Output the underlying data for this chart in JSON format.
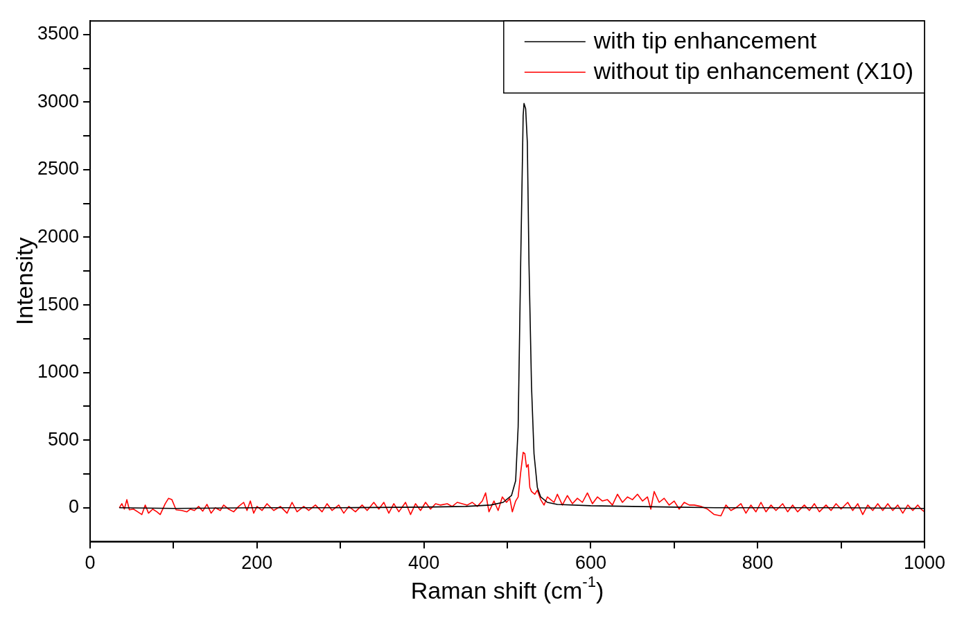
{
  "chart_data": {
    "type": "line",
    "xlabel": "Raman shift (cm$^{-1}$)",
    "ylabel": "Intensity",
    "xlim": [
      0,
      1000
    ],
    "ylim": [
      -250,
      3600
    ],
    "xticks": [
      0,
      {
        "value": 100,
        "label": null
      },
      200,
      {
        "value": 300,
        "label": null
      },
      400,
      {
        "value": 500,
        "label": null
      },
      600,
      {
        "value": 700,
        "label": null
      },
      800,
      {
        "value": 900,
        "label": null
      },
      1000
    ],
    "yticks": [
      0,
      {
        "value": 250,
        "label": null
      },
      500,
      {
        "value": 750,
        "label": null
      },
      1000,
      {
        "value": 1250,
        "label": null
      },
      1500,
      {
        "value": 1750,
        "label": null
      },
      2000,
      {
        "value": 2250,
        "label": null
      },
      2500,
      {
        "value": 2750,
        "label": null
      },
      3000,
      {
        "value": 3250,
        "label": null
      },
      3500
    ],
    "grid": false,
    "legend": "top right",
    "marker": "none",
    "line_style": "solid",
    "series": [
      {
        "name": "with tip enhancement",
        "color": "#000000",
        "x": [
          35,
          100,
          200,
          300,
          400,
          450,
          480,
          495,
          505,
          510,
          513,
          516,
          519,
          520,
          522,
          524,
          526,
          529,
          532,
          536,
          540,
          548,
          560,
          600,
          650,
          700,
          750,
          800,
          900,
          1000
        ],
        "values": [
          0,
          -5,
          0,
          0,
          5,
          10,
          20,
          40,
          90,
          200,
          600,
          1800,
          2900,
          2990,
          2950,
          2700,
          1800,
          900,
          400,
          150,
          80,
          40,
          25,
          15,
          10,
          5,
          0,
          0,
          0,
          -5
        ]
      },
      {
        "name": "without tip enhancement (X10)",
        "color": "#ff0000",
        "x": [
          35,
          38,
          41,
          44,
          47,
          52,
          57,
          62,
          66,
          70,
          75,
          80,
          84,
          90,
          94,
          98,
          103,
          110,
          116,
          120,
          125,
          130,
          135,
          140,
          145,
          150,
          156,
          160,
          166,
          172,
          178,
          184,
          188,
          192,
          196,
          200,
          206,
          212,
          220,
          228,
          236,
          242,
          248,
          256,
          262,
          270,
          278,
          284,
          290,
          298,
          304,
          310,
          318,
          326,
          332,
          340,
          346,
          352,
          358,
          364,
          370,
          378,
          384,
          390,
          396,
          402,
          408,
          414,
          420,
          428,
          434,
          440,
          446,
          452,
          458,
          464,
          470,
          474,
          478,
          484,
          489,
          494,
          499,
          503,
          506,
          510,
          513,
          516,
          519,
          521,
          523,
          525,
          527,
          529,
          533,
          536,
          540,
          544,
          548,
          552,
          556,
          560,
          566,
          572,
          578,
          584,
          590,
          596,
          602,
          608,
          614,
          620,
          626,
          632,
          638,
          644,
          650,
          656,
          662,
          668,
          672,
          676,
          682,
          688,
          694,
          700,
          706,
          712,
          718,
          724,
          732,
          740,
          748,
          756,
          762,
          768,
          774,
          780,
          786,
          792,
          798,
          804,
          810,
          816,
          822,
          830,
          836,
          842,
          848,
          856,
          862,
          868,
          874,
          882,
          888,
          894,
          900,
          908,
          914,
          920,
          926,
          932,
          938,
          944,
          950,
          956,
          962,
          968,
          974,
          980,
          986,
          992,
          996,
          1000
        ],
        "values": [
          0,
          30,
          -10,
          60,
          -15,
          -10,
          -30,
          -50,
          20,
          -40,
          -10,
          -30,
          -50,
          30,
          70,
          60,
          -15,
          -20,
          -30,
          -10,
          -20,
          10,
          -25,
          25,
          -40,
          0,
          -20,
          20,
          -10,
          -30,
          10,
          40,
          -20,
          50,
          -40,
          10,
          -20,
          30,
          -20,
          10,
          -40,
          40,
          -30,
          10,
          -20,
          20,
          -30,
          30,
          -20,
          20,
          -40,
          10,
          -30,
          20,
          -20,
          40,
          -10,
          40,
          -40,
          30,
          -30,
          40,
          -50,
          30,
          -20,
          40,
          -10,
          30,
          20,
          30,
          10,
          40,
          30,
          20,
          40,
          10,
          50,
          110,
          -30,
          50,
          -20,
          80,
          40,
          70,
          -30,
          50,
          80,
          260,
          410,
          400,
          300,
          320,
          150,
          120,
          100,
          130,
          60,
          20,
          80,
          60,
          40,
          100,
          20,
          90,
          30,
          70,
          40,
          110,
          30,
          80,
          50,
          60,
          20,
          100,
          40,
          80,
          60,
          100,
          50,
          80,
          -10,
          120,
          40,
          70,
          20,
          50,
          -10,
          40,
          20,
          20,
          10,
          -10,
          -50,
          -60,
          20,
          -20,
          0,
          30,
          -40,
          20,
          -30,
          40,
          -30,
          20,
          -20,
          30,
          -30,
          20,
          -30,
          20,
          -20,
          30,
          -30,
          20,
          -20,
          30,
          -10,
          40,
          -20,
          30,
          -50,
          20,
          -20,
          30,
          -20,
          30,
          -20,
          20,
          -40,
          20,
          -20,
          20,
          -10,
          -30
        ]
      }
    ]
  }
}
